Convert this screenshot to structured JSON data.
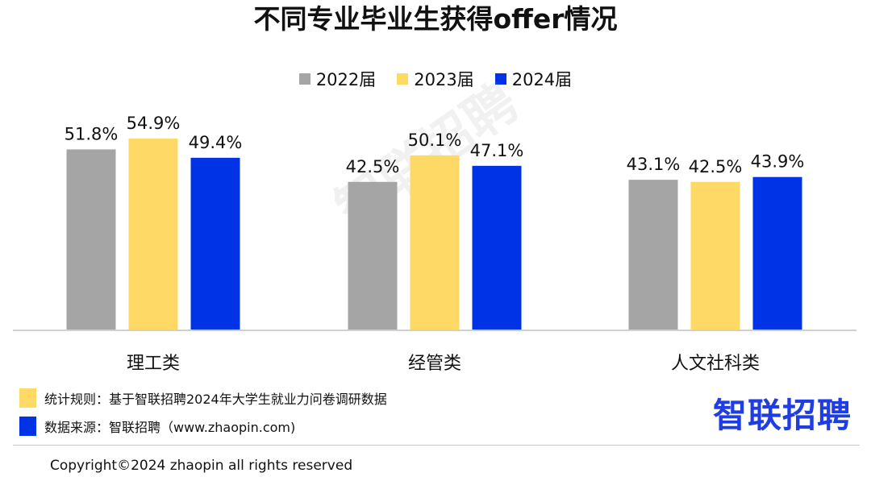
{
  "chart_data": {
    "type": "bar",
    "title": "不同专业毕业生获得offer情况",
    "categories": [
      "理工类",
      "经管类",
      "人文社科类"
    ],
    "series": [
      {
        "name": "2022届",
        "values": [
          51.8,
          42.5,
          43.1
        ],
        "labels": [
          "51.8%",
          "42.5%",
          "43.1%"
        ],
        "color": "#a5a5a5"
      },
      {
        "name": "2023届",
        "values": [
          54.9,
          50.1,
          42.5
        ],
        "labels": [
          "54.9%",
          "50.1%",
          "42.5%"
        ],
        "color": "#ffd966"
      },
      {
        "name": "2024届",
        "values": [
          49.4,
          47.1,
          43.9
        ],
        "labels": [
          "49.4%",
          "47.1%",
          "43.9%"
        ],
        "color": "#0033e6"
      }
    ],
    "unit": "%",
    "ylim": [
      0,
      54.9
    ],
    "grid": false,
    "legend_position": "top-center"
  },
  "footnotes": {
    "stats_rule": "统计规则：基于智联招聘2024年大学生就业力问卷调研数据",
    "stats_rule_color": "#ffd966",
    "data_source": "数据来源：智联招聘（www.zhaopin.com)",
    "data_source_color": "#0033e6"
  },
  "brand": {
    "logo_text": "智联招聘",
    "watermark": "智联招聘"
  },
  "copyright": "Copyright©2024 zhaopin all rights reserved"
}
